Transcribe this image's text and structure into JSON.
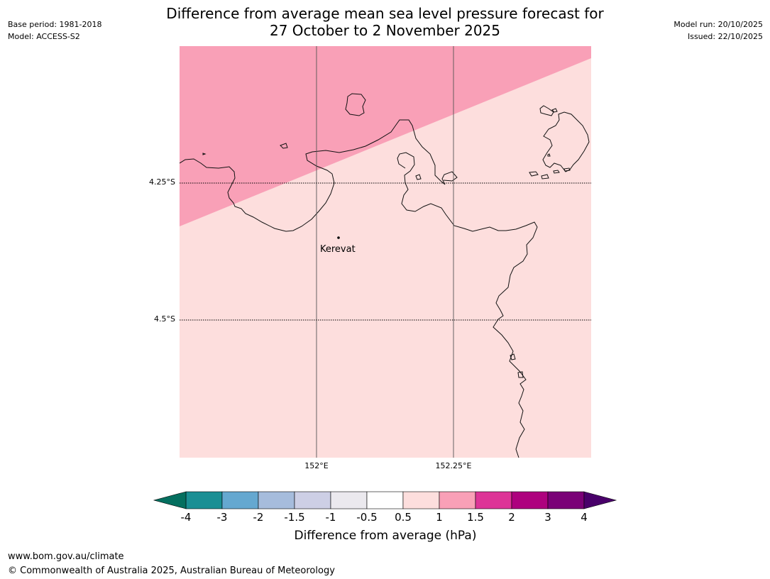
{
  "title": {
    "line1": "Difference from average mean sea level pressure forecast for",
    "line2": "27 October to 2 November 2025"
  },
  "meta_left": {
    "base_period": "Base period: 1981-2018",
    "model": "Model: ACCESS-S2"
  },
  "meta_right": {
    "model_run": "Model run: 20/10/2025",
    "issued": "Issued: 22/10/2025"
  },
  "map": {
    "place_label": "Kerevat",
    "lat_labels": [
      "4.25°S",
      "4.5°S"
    ],
    "lon_labels": [
      "152°E",
      "152.25°E"
    ],
    "anomaly_regions": [
      {
        "range": "1 to 1.5",
        "color": "#f9a0b7"
      },
      {
        "range": "0.5 to 1",
        "color": "#fddedd"
      }
    ]
  },
  "colorbar": {
    "title": "Difference from average (hPa)",
    "tick_labels": [
      "-4",
      "-3",
      "-2",
      "-1.5",
      "-1",
      "-0.5",
      "0.5",
      "1",
      "1.5",
      "2",
      "3",
      "4"
    ],
    "colors": [
      "#1a8f94",
      "#65a8d0",
      "#a6bcdc",
      "#cdcfe5",
      "#ebe9ee",
      "#ffffff",
      "#fddedd",
      "#f9a0b7",
      "#dd3497",
      "#ae017e",
      "#7a0177"
    ],
    "under_color": "#046f5f",
    "over_color": "#49006a"
  },
  "footer": {
    "url": "www.bom.gov.au/climate",
    "copyright": "© Commonwealth of Australia 2025, Australian Bureau of Meteorology"
  }
}
